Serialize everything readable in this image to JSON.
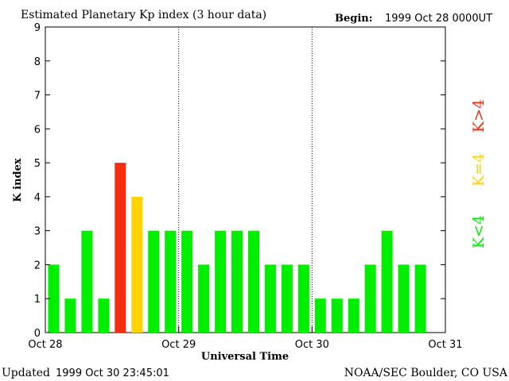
{
  "header": {
    "title": "Estimated Planetary Kp index (3 hour data)",
    "begin_label": "Begin:",
    "begin_value": "1999 Oct 28 0000UT"
  },
  "footer": {
    "updated_label": "Updated",
    "updated_value": "1999 Oct 30 23:45:01",
    "source": "NOAA/SEC Boulder, CO USA"
  },
  "legend": {
    "high": "K>4",
    "equal": "K=4",
    "low": "K<4"
  },
  "colors": {
    "low": "#00ee00",
    "equal": "#ffd400",
    "high": "#f52d10"
  },
  "chart_data": {
    "type": "bar",
    "xlabel": "Universal Time",
    "ylabel": "K index",
    "ylim": [
      0,
      9
    ],
    "yticks": [
      0,
      1,
      2,
      3,
      4,
      5,
      6,
      7,
      8,
      9
    ],
    "xtick_labels": [
      "Oct 28",
      "Oct 29",
      "Oct 30",
      "Oct 31"
    ],
    "grid": "dotted vertical lines at day boundaries",
    "interval_hours": 3,
    "values": [
      2,
      1,
      3,
      1,
      5,
      4,
      3,
      3,
      3,
      2,
      3,
      3,
      3,
      2,
      2,
      2,
      1,
      1,
      1,
      2,
      3,
      2,
      2,
      0
    ]
  }
}
